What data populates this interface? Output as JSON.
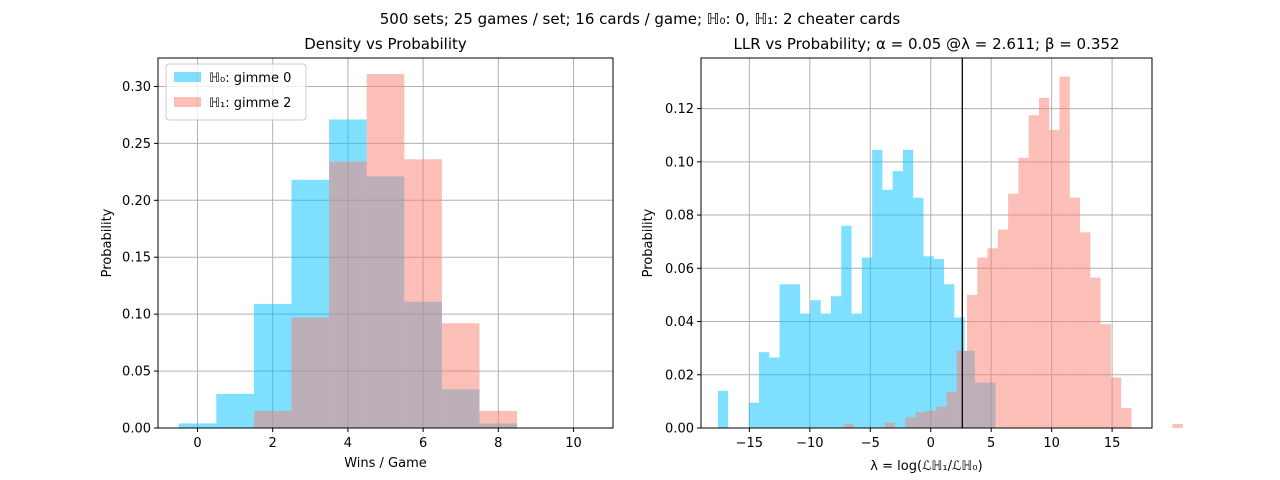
{
  "suptitle": "500 sets; 25 games / set; 16 cards / game; ℍ₀: 0, ℍ₁: 2 cheater cards",
  "colors": {
    "h0": "#00bfff",
    "h1": "#fa8072",
    "h0_alpha": 0.5,
    "h1_alpha": 0.5,
    "vline": "#000000"
  },
  "chart_data": [
    {
      "type": "bar",
      "title": "Density vs Probability",
      "xlabel": "Wins / Game",
      "ylabel": "Probability",
      "xlim": [
        -1.05,
        11.05
      ],
      "ylim": [
        0,
        0.325
      ],
      "xticks": [
        0,
        2,
        4,
        6,
        8,
        10
      ],
      "xtick_labels": [
        "0",
        "2",
        "4",
        "6",
        "8",
        "10"
      ],
      "yticks": [
        0,
        0.05,
        0.1,
        0.15,
        0.2,
        0.25,
        0.3
      ],
      "ytick_labels": [
        "0.00",
        "0.05",
        "0.10",
        "0.15",
        "0.20",
        "0.25",
        "0.30"
      ],
      "grid": true,
      "legend_position": "top-left",
      "bin_edges": [
        -0.5,
        0.5,
        1.5,
        2.5,
        3.5,
        4.5,
        5.5,
        6.5,
        7.5,
        8.5
      ],
      "series": [
        {
          "name": "ℍ₀: gimme 0",
          "values": [
            0.004,
            0.03,
            0.109,
            0.218,
            0.271,
            0.221,
            0.111,
            0.034,
            0.004
          ]
        },
        {
          "name": "ℍ₁: gimme 2",
          "values": [
            0.0,
            0.0,
            0.015,
            0.097,
            0.234,
            0.311,
            0.236,
            0.092,
            0.015
          ]
        }
      ]
    },
    {
      "type": "bar",
      "title": "LLR vs Probability; α = 0.05 @λ = 2.611; β = 0.352",
      "xlabel": "λ = log(ℒℍ₁/ℒℍ₀)",
      "ylabel": "Probability",
      "xlim": [
        -19.0,
        18.3
      ],
      "ylim": [
        0,
        0.139
      ],
      "xticks": [
        -15,
        -10,
        -5,
        0,
        5,
        10,
        15
      ],
      "xtick_labels": [
        "−15",
        "−10",
        "−5",
        "0",
        "5",
        "10",
        "15"
      ],
      "yticks": [
        0,
        0.02,
        0.04,
        0.06,
        0.08,
        0.1,
        0.12
      ],
      "ytick_labels": [
        "0.00",
        "0.02",
        "0.04",
        "0.06",
        "0.08",
        "0.10",
        "0.12"
      ],
      "grid": true,
      "threshold": 2.611,
      "series": [
        {
          "name": "",
          "x_start": -17.6,
          "bin_width": 0.85,
          "values": [
            0.014,
            0.0,
            0.0,
            0.0095,
            0.0285,
            0.0265,
            0.054,
            0.054,
            0.043,
            0.048,
            0.043,
            0.0495,
            0.076,
            0.043,
            0.064,
            0.1045,
            0.0895,
            0.0965,
            0.1045,
            0.0865,
            0.0645,
            0.0635,
            0.054,
            0.0415,
            0.029,
            0.017,
            0.017
          ]
        },
        {
          "name": "",
          "x_start": -7.2,
          "bin_width": 0.85,
          "values": [
            0.0015,
            0.0,
            0.0,
            0.0,
            0.002,
            0.0,
            0.004,
            0.006,
            0.0065,
            0.008,
            0.0135,
            0.029,
            0.05,
            0.064,
            0.0675,
            0.0745,
            0.088,
            0.1015,
            0.1175,
            0.124,
            0.112,
            0.132,
            0.0865,
            0.0735,
            0.0565,
            0.039,
            0.019,
            0.0075,
            0.0,
            0.0,
            0.0,
            0.0,
            0.0015
          ]
        }
      ]
    }
  ]
}
